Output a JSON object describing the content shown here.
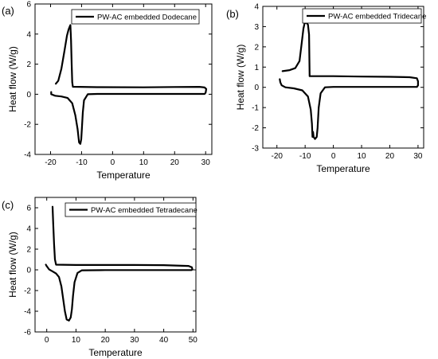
{
  "chart_data": [
    {
      "type": "line",
      "panel_label": "(a)",
      "xlabel": "Temperature",
      "ylabel": "Heat flow (W/g)",
      "xlim": [
        -25,
        32
      ],
      "ylim": [
        -4,
        6
      ],
      "x_ticks": [
        -20,
        -10,
        0,
        10,
        20,
        30
      ],
      "y_ticks": [
        -4,
        -2,
        0,
        2,
        4,
        6
      ],
      "legend": {
        "placement": "top-right",
        "entries": [
          "PW-AC embedded Dodecane"
        ]
      },
      "grid": false,
      "series": [
        {
          "name": "PW-AC embedded Dodecane",
          "points": [
            [
              -18.3,
              0.7
            ],
            [
              -17.5,
              0.9
            ],
            [
              -16.5,
              1.7
            ],
            [
              -15.5,
              2.9
            ],
            [
              -14.7,
              3.9
            ],
            [
              -14.2,
              4.3
            ],
            [
              -13.8,
              4.5
            ],
            [
              -13.6,
              4.6
            ],
            [
              -13.4,
              3.6
            ],
            [
              -13.2,
              2.0
            ],
            [
              -13.0,
              0.8
            ],
            [
              -12.8,
              0.5
            ],
            [
              -5,
              0.47
            ],
            [
              10,
              0.46
            ],
            [
              20,
              0.48
            ],
            [
              28,
              0.49
            ],
            [
              29.7,
              0.45
            ],
            [
              30.2,
              0.35
            ],
            [
              30,
              0.1
            ],
            [
              29.7,
              0.02
            ],
            [
              20,
              0.02
            ],
            [
              0,
              0.02
            ],
            [
              -5,
              0.02
            ],
            [
              -8,
              0.0
            ],
            [
              -9.2,
              -0.4
            ],
            [
              -9.6,
              -1.2
            ],
            [
              -9.9,
              -2.3
            ],
            [
              -10.1,
              -3.0
            ],
            [
              -10.4,
              -3.3
            ],
            [
              -10.8,
              -3.2
            ],
            [
              -11.3,
              -2.3
            ],
            [
              -12.0,
              -1.4
            ],
            [
              -13.0,
              -0.6
            ],
            [
              -14.5,
              -0.25
            ],
            [
              -16.5,
              -0.15
            ],
            [
              -18.5,
              -0.1
            ],
            [
              -19.8,
              0.0
            ],
            [
              -19.8,
              0.15
            ]
          ]
        }
      ]
    },
    {
      "type": "line",
      "panel_label": "(b)",
      "xlabel": "Temperature",
      "ylabel": "Heat flow (W/g)",
      "xlim": [
        -25,
        32
      ],
      "ylim": [
        -3,
        4
      ],
      "x_ticks": [
        -20,
        -10,
        0,
        10,
        20,
        30
      ],
      "y_ticks": [
        -3,
        -2,
        -1,
        0,
        1,
        2,
        3,
        4
      ],
      "legend": {
        "placement": "top-right",
        "entries": [
          "PW-AC embedded Tridecane"
        ]
      },
      "grid": false,
      "series": [
        {
          "name": "PW-AC embedded Tridecane",
          "points": [
            [
              -18.0,
              0.8
            ],
            [
              -15.5,
              0.85
            ],
            [
              -13.5,
              0.95
            ],
            [
              -12.0,
              1.3
            ],
            [
              -11.2,
              2.2
            ],
            [
              -10.6,
              2.9
            ],
            [
              -10.2,
              3.15
            ],
            [
              -9.6,
              3.2
            ],
            [
              -9.0,
              3.1
            ],
            [
              -8.6,
              2.6
            ],
            [
              -8.5,
              1.4
            ],
            [
              -8.4,
              0.55
            ],
            [
              0,
              0.55
            ],
            [
              10,
              0.53
            ],
            [
              20,
              0.52
            ],
            [
              27,
              0.5
            ],
            [
              29.6,
              0.45
            ],
            [
              30.0,
              0.3
            ],
            [
              30.0,
              0.1
            ],
            [
              29.6,
              0.02
            ],
            [
              20,
              0.02
            ],
            [
              0,
              0.02
            ],
            [
              -3,
              0.0
            ],
            [
              -4.5,
              -0.3
            ],
            [
              -5.2,
              -1.0
            ],
            [
              -5.6,
              -2.0
            ],
            [
              -5.9,
              -2.45
            ],
            [
              -6.5,
              -2.55
            ],
            [
              -7.0,
              -2.45
            ],
            [
              -7.2,
              -2.2
            ],
            [
              -7.4,
              -2.45
            ],
            [
              -7.6,
              -1.8
            ],
            [
              -8.0,
              -1.1
            ],
            [
              -9.0,
              -0.45
            ],
            [
              -11.0,
              -0.15
            ],
            [
              -14.0,
              -0.05
            ],
            [
              -17.0,
              0.0
            ],
            [
              -18.3,
              0.1
            ],
            [
              -18.8,
              0.25
            ],
            [
              -19.0,
              0.4
            ]
          ]
        }
      ]
    },
    {
      "type": "line",
      "panel_label": "(c)",
      "xlabel": "Temperature",
      "ylabel": "Heat flow (W/g)",
      "xlim": [
        -4,
        51
      ],
      "ylim": [
        -6,
        7
      ],
      "x_ticks": [
        0,
        10,
        20,
        30,
        40,
        50
      ],
      "y_ticks": [
        -6,
        -4,
        -2,
        0,
        2,
        4,
        6
      ],
      "legend": {
        "placement": "top-right",
        "entries": [
          "PW-AC embedded Tetradecane"
        ]
      },
      "grid": false,
      "series": [
        {
          "name": "PW-AC embedded Tetradecane",
          "points": [
            [
              2.0,
              6.1
            ],
            [
              2.2,
              4.5
            ],
            [
              2.5,
              2.5
            ],
            [
              2.8,
              1.0
            ],
            [
              3.2,
              0.5
            ],
            [
              10,
              0.47
            ],
            [
              20,
              0.47
            ],
            [
              30,
              0.47
            ],
            [
              40,
              0.45
            ],
            [
              48.5,
              0.38
            ],
            [
              49.6,
              0.25
            ],
            [
              49.8,
              0.05
            ],
            [
              49.5,
              -0.02
            ],
            [
              40,
              -0.02
            ],
            [
              20,
              -0.02
            ],
            [
              12,
              -0.05
            ],
            [
              10.5,
              -0.3
            ],
            [
              9.5,
              -1.2
            ],
            [
              9.0,
              -2.5
            ],
            [
              8.6,
              -3.8
            ],
            [
              8.2,
              -4.6
            ],
            [
              7.6,
              -4.9
            ],
            [
              6.8,
              -4.8
            ],
            [
              6.2,
              -4.0
            ],
            [
              5.6,
              -2.8
            ],
            [
              5.0,
              -1.6
            ],
            [
              4.2,
              -0.7
            ],
            [
              3.2,
              -0.35
            ],
            [
              2.0,
              -0.15
            ],
            [
              0.8,
              0.05
            ],
            [
              0.0,
              0.35
            ],
            [
              -0.3,
              0.5
            ]
          ]
        }
      ]
    }
  ]
}
